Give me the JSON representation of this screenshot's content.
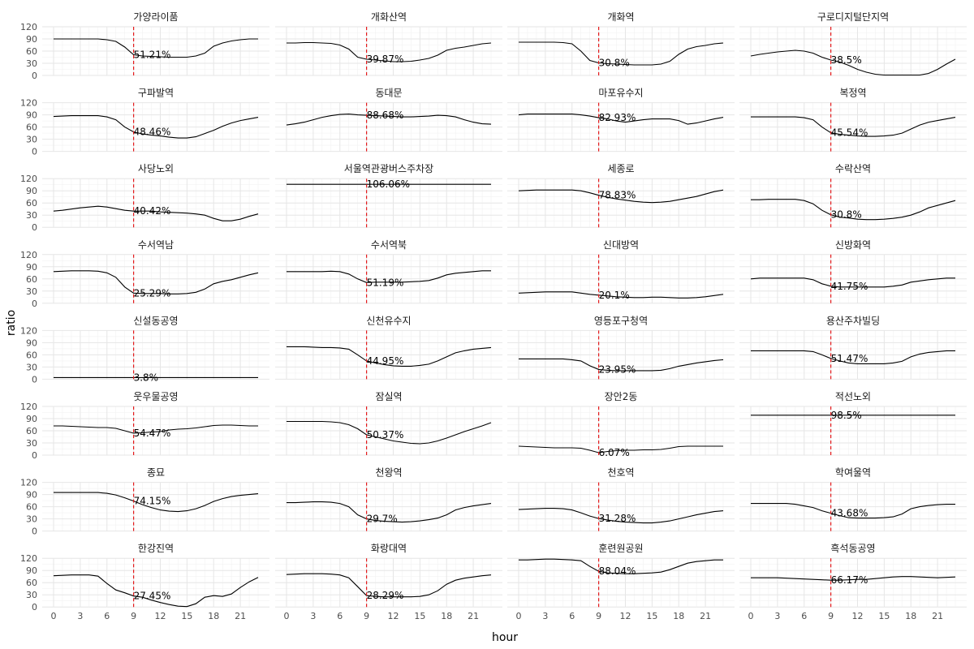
{
  "chart_data": {
    "type": "line",
    "xlabel": "hour",
    "ylabel": "ratio",
    "xlim": [
      0,
      23
    ],
    "ylim": [
      0,
      120
    ],
    "x_ticks": [
      "0",
      "3",
      "6",
      "9",
      "12",
      "15",
      "18",
      "21"
    ],
    "y_ticks": [
      "0",
      "30",
      "60",
      "90",
      "120"
    ],
    "grid": true,
    "reference_line": {
      "x": 9,
      "color": "#e41a1c",
      "style": "dashed"
    },
    "x": [
      0,
      1,
      2,
      3,
      4,
      5,
      6,
      7,
      8,
      9,
      10,
      11,
      12,
      13,
      14,
      15,
      16,
      17,
      18,
      19,
      20,
      21,
      22,
      23
    ],
    "panels": [
      {
        "name": "가양라이품",
        "annotation": "51.21%",
        "values": [
          90,
          90,
          90,
          90,
          90,
          90,
          88,
          84,
          70,
          51,
          48,
          47,
          46,
          45,
          45,
          45,
          48,
          55,
          72,
          80,
          85,
          88,
          90,
          90
        ]
      },
      {
        "name": "개화산역",
        "annotation": "39.87%",
        "values": [
          80,
          80,
          81,
          81,
          80,
          79,
          75,
          65,
          45,
          40,
          38,
          36,
          34,
          34,
          35,
          38,
          42,
          50,
          62,
          67,
          70,
          74,
          78,
          80
        ]
      },
      {
        "name": "개화역",
        "annotation": "30.8%",
        "values": [
          82,
          82,
          82,
          82,
          82,
          81,
          78,
          60,
          37,
          31,
          29,
          28,
          27,
          26,
          26,
          26,
          28,
          35,
          52,
          65,
          71,
          74,
          78,
          80
        ]
      },
      {
        "name": "구로디지털단지역",
        "annotation": "38.5%",
        "values": [
          48,
          52,
          55,
          58,
          60,
          62,
          60,
          55,
          45,
          38,
          33,
          25,
          15,
          8,
          3,
          1,
          1,
          1,
          1,
          1,
          5,
          15,
          28,
          40
        ]
      },
      {
        "name": "구파발역",
        "annotation": "48.46%",
        "values": [
          86,
          87,
          88,
          88,
          88,
          88,
          85,
          78,
          60,
          48,
          43,
          40,
          38,
          35,
          33,
          33,
          36,
          44,
          52,
          62,
          70,
          76,
          80,
          84
        ]
      },
      {
        "name": "동대문",
        "annotation": "88.68%",
        "values": [
          65,
          68,
          72,
          78,
          84,
          88,
          91,
          92,
          90,
          89,
          88,
          87,
          86,
          85,
          85,
          86,
          87,
          89,
          88,
          85,
          78,
          72,
          68,
          67
        ]
      },
      {
        "name": "마포유수지",
        "annotation": "82.93%",
        "values": [
          90,
          92,
          92,
          92,
          92,
          92,
          92,
          90,
          87,
          83,
          80,
          75,
          72,
          75,
          78,
          80,
          80,
          80,
          76,
          67,
          70,
          75,
          80,
          84
        ]
      },
      {
        "name": "복정역",
        "annotation": "45.54%",
        "values": [
          85,
          85,
          85,
          85,
          85,
          85,
          83,
          78,
          60,
          46,
          42,
          40,
          38,
          37,
          37,
          38,
          40,
          45,
          55,
          65,
          72,
          76,
          80,
          84
        ]
      },
      {
        "name": "사당노외",
        "annotation": "40.42%",
        "values": [
          40,
          42,
          45,
          48,
          50,
          52,
          50,
          46,
          42,
          40,
          40,
          40,
          38,
          37,
          36,
          35,
          33,
          30,
          22,
          16,
          16,
          20,
          27,
          33
        ]
      },
      {
        "name": "서울역관광버스주차장",
        "annotation": "106.06%",
        "values": [
          106,
          106,
          106,
          106,
          106,
          106,
          106,
          106,
          106,
          106,
          106,
          106,
          106,
          106,
          106,
          106,
          106,
          106,
          106,
          106,
          106,
          106,
          106,
          106
        ]
      },
      {
        "name": "세종로",
        "annotation": "78.83%",
        "values": [
          90,
          91,
          92,
          92,
          92,
          92,
          92,
          90,
          85,
          79,
          74,
          70,
          67,
          64,
          62,
          61,
          62,
          64,
          68,
          72,
          76,
          82,
          88,
          92
        ]
      },
      {
        "name": "수락산역",
        "annotation": "30.8%",
        "values": [
          68,
          68,
          69,
          69,
          69,
          69,
          66,
          58,
          42,
          31,
          25,
          23,
          20,
          19,
          19,
          20,
          22,
          25,
          30,
          38,
          48,
          54,
          60,
          66
        ]
      },
      {
        "name": "수서역남",
        "annotation": "25.29%",
        "values": [
          78,
          79,
          80,
          80,
          80,
          79,
          75,
          64,
          40,
          25,
          24,
          24,
          24,
          23,
          23,
          24,
          27,
          35,
          48,
          54,
          58,
          64,
          70,
          75
        ]
      },
      {
        "name": "수서역북",
        "annotation": "51.19%",
        "values": [
          78,
          78,
          78,
          78,
          78,
          79,
          78,
          72,
          60,
          51,
          52,
          52,
          52,
          52,
          53,
          54,
          56,
          62,
          70,
          74,
          76,
          78,
          80,
          80
        ]
      },
      {
        "name": "신대방역",
        "annotation": "20.1%",
        "values": [
          25,
          26,
          27,
          28,
          28,
          28,
          28,
          25,
          22,
          20,
          18,
          16,
          15,
          14,
          14,
          15,
          15,
          14,
          13,
          13,
          14,
          16,
          19,
          22
        ]
      },
      {
        "name": "신방화역",
        "annotation": "41.75%",
        "values": [
          60,
          62,
          62,
          62,
          62,
          62,
          62,
          58,
          48,
          42,
          40,
          40,
          40,
          40,
          40,
          40,
          42,
          45,
          52,
          55,
          58,
          60,
          62,
          62
        ]
      },
      {
        "name": "신설동공영",
        "annotation": "3.8%",
        "values": [
          4,
          4,
          4,
          4,
          4,
          4,
          4,
          4,
          4,
          4,
          4,
          4,
          4,
          4,
          4,
          4,
          4,
          4,
          4,
          4,
          4,
          4,
          4,
          4
        ]
      },
      {
        "name": "신천유수지",
        "annotation": "44.95%",
        "values": [
          80,
          80,
          80,
          79,
          78,
          78,
          77,
          74,
          60,
          45,
          40,
          36,
          33,
          32,
          32,
          34,
          37,
          45,
          55,
          65,
          70,
          74,
          76,
          78
        ]
      },
      {
        "name": "영등포구청역",
        "annotation": "23.95%",
        "values": [
          50,
          50,
          50,
          50,
          50,
          50,
          48,
          45,
          33,
          24,
          22,
          21,
          21,
          21,
          21,
          21,
          22,
          26,
          32,
          36,
          40,
          43,
          46,
          48
        ]
      },
      {
        "name": "용산주차빌딩",
        "annotation": "51.47%",
        "values": [
          70,
          70,
          70,
          70,
          70,
          70,
          70,
          68,
          60,
          51,
          45,
          40,
          38,
          38,
          38,
          38,
          40,
          44,
          55,
          62,
          66,
          68,
          70,
          70
        ]
      },
      {
        "name": "웃우물공영",
        "annotation": "54.47%",
        "values": [
          72,
          72,
          71,
          70,
          69,
          68,
          68,
          66,
          60,
          54,
          55,
          57,
          58,
          62,
          64,
          65,
          67,
          70,
          73,
          74,
          74,
          73,
          72,
          72
        ]
      },
      {
        "name": "잠실역",
        "annotation": "50.37%",
        "values": [
          83,
          83,
          83,
          83,
          83,
          82,
          80,
          75,
          65,
          50,
          45,
          40,
          35,
          32,
          29,
          28,
          30,
          35,
          42,
          50,
          58,
          65,
          72,
          80
        ]
      },
      {
        "name": "장안2동",
        "annotation": "6.07%",
        "values": [
          22,
          21,
          20,
          19,
          18,
          18,
          18,
          17,
          12,
          6,
          9,
          11,
          12,
          12,
          13,
          13,
          14,
          17,
          21,
          22,
          22,
          22,
          22,
          22
        ]
      },
      {
        "name": "적선노외",
        "annotation": "98.5%",
        "values": [
          98.5,
          98.5,
          98.5,
          98.5,
          98.5,
          98.5,
          98.5,
          98.5,
          98.5,
          98.5,
          98.5,
          98.5,
          98.5,
          98.5,
          98.5,
          98.5,
          98.5,
          98.5,
          98.5,
          98.5,
          98.5,
          98.5,
          98.5,
          98.5
        ]
      },
      {
        "name": "종묘",
        "annotation": "74.15%",
        "values": [
          95,
          95,
          95,
          95,
          95,
          95,
          93,
          89,
          82,
          74,
          65,
          58,
          52,
          49,
          48,
          50,
          55,
          63,
          73,
          80,
          85,
          88,
          90,
          92
        ]
      },
      {
        "name": "천왕역",
        "annotation": "29.7%",
        "values": [
          70,
          70,
          71,
          72,
          72,
          71,
          68,
          60,
          40,
          30,
          26,
          24,
          23,
          22,
          23,
          25,
          28,
          32,
          40,
          52,
          58,
          62,
          65,
          68
        ]
      },
      {
        "name": "천호역",
        "annotation": "31.28%",
        "values": [
          53,
          54,
          55,
          56,
          56,
          55,
          52,
          45,
          37,
          31,
          27,
          24,
          22,
          21,
          20,
          20,
          22,
          25,
          30,
          35,
          40,
          44,
          48,
          50
        ]
      },
      {
        "name": "학여울역",
        "annotation": "43.68%",
        "values": [
          68,
          68,
          68,
          68,
          68,
          66,
          62,
          58,
          50,
          44,
          38,
          33,
          32,
          32,
          32,
          33,
          35,
          42,
          55,
          60,
          63,
          65,
          66,
          66
        ]
      },
      {
        "name": "한강진역",
        "annotation": "27.45%",
        "values": [
          77,
          78,
          79,
          79,
          79,
          76,
          58,
          42,
          35,
          27,
          24,
          17,
          11,
          6,
          2,
          1,
          8,
          24,
          28,
          26,
          32,
          48,
          62,
          73
        ]
      },
      {
        "name": "화랑대역",
        "annotation": "28.29%",
        "values": [
          80,
          81,
          82,
          82,
          82,
          81,
          79,
          72,
          50,
          28,
          26,
          25,
          25,
          25,
          25,
          26,
          30,
          40,
          56,
          66,
          71,
          74,
          77,
          79
        ]
      },
      {
        "name": "훈련원공원",
        "annotation": "88.04%",
        "values": [
          116,
          116,
          117,
          118,
          118,
          117,
          116,
          114,
          100,
          88,
          84,
          83,
          82,
          82,
          83,
          84,
          86,
          92,
          100,
          108,
          112,
          114,
          116,
          116
        ]
      },
      {
        "name": "흑석동공영",
        "annotation": "66.17%",
        "values": [
          72,
          72,
          72,
          72,
          71,
          70,
          69,
          68,
          67,
          66,
          66,
          67,
          68,
          68,
          70,
          72,
          74,
          75,
          75,
          74,
          73,
          72,
          73,
          74
        ]
      }
    ]
  }
}
